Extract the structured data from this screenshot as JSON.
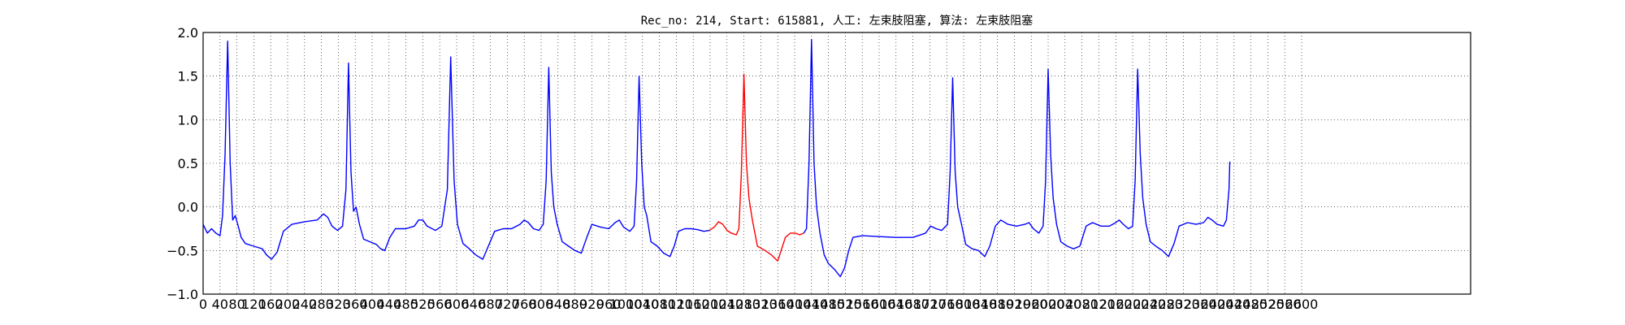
{
  "chart_data": {
    "type": "line",
    "title": "Rec_no: 214, Start: 615881, 人工: 左束肢阻塞, 算法: 左束肢阻塞",
    "xlabel": "",
    "ylabel": "",
    "xlim": [
      0,
      3000
    ],
    "ylim": [
      -1.0,
      2.0
    ],
    "grid": true,
    "x_ticks": [
      0,
      40,
      80,
      120,
      160,
      200,
      240,
      280,
      320,
      360,
      400,
      440,
      480,
      520,
      560,
      600,
      640,
      680,
      720,
      760,
      800,
      840,
      880,
      920,
      960,
      1000,
      1040,
      1080,
      1120,
      1160,
      1200,
      1240,
      1280,
      1320,
      1360,
      1400,
      1440,
      1480,
      1520,
      1560,
      1600,
      1640,
      1680,
      1720,
      1760,
      1800,
      1840,
      1880,
      1920,
      1960,
      2000,
      2040,
      2080,
      2120,
      2160,
      2200,
      2240,
      2280,
      2320,
      2360,
      2400,
      2440,
      2480,
      2520,
      2560,
      2600
    ],
    "x_tick_labels": [
      "0",
      "40",
      "80",
      "120",
      "160",
      "200",
      "240",
      "280",
      "320",
      "360",
      "400",
      "440",
      "480",
      "520",
      "560",
      "600",
      "640",
      "680",
      "720",
      "760",
      "800",
      "840",
      "880",
      "920",
      "960",
      "1000",
      "1040",
      "1080",
      "1120",
      "1160",
      "1200",
      "1240",
      "1280",
      "1320",
      "1360",
      "1400",
      "1440",
      "1480",
      "1520",
      "1560",
      "1600",
      "1640",
      "1680",
      "1720",
      "1760",
      "1800",
      "1840",
      "1880",
      "1920",
      "1960",
      "2000",
      "2040",
      "2080",
      "2120",
      "2160",
      "2200",
      "2240",
      "2280",
      "2320",
      "2360",
      "2400",
      "2440",
      "2480",
      "2520",
      "2560",
      "2600"
    ],
    "y_ticks": [
      -1.0,
      -0.5,
      0.0,
      0.5,
      1.0,
      1.5,
      2.0
    ],
    "y_tick_labels": [
      "−1.0",
      "−0.5",
      "0.0",
      "0.5",
      "1.0",
      "1.5",
      "2.0"
    ],
    "series": [
      {
        "color": "#0000ff",
        "points": [
          [
            0,
            -0.2
          ],
          [
            10,
            -0.3
          ],
          [
            20,
            -0.25
          ],
          [
            30,
            -0.3
          ],
          [
            40,
            -0.33
          ],
          [
            46,
            -0.1
          ],
          [
            52,
            0.6
          ],
          [
            58,
            1.9
          ],
          [
            64,
            0.5
          ],
          [
            70,
            -0.15
          ],
          [
            76,
            -0.1
          ],
          [
            82,
            -0.2
          ],
          [
            90,
            -0.35
          ],
          [
            100,
            -0.42
          ],
          [
            120,
            -0.45
          ],
          [
            140,
            -0.48
          ],
          [
            150,
            -0.55
          ],
          [
            162,
            -0.6
          ],
          [
            175,
            -0.52
          ],
          [
            190,
            -0.28
          ],
          [
            210,
            -0.2
          ],
          [
            240,
            -0.17
          ],
          [
            270,
            -0.15
          ],
          [
            285,
            -0.08
          ],
          [
            295,
            -0.12
          ],
          [
            305,
            -0.22
          ],
          [
            318,
            -0.27
          ],
          [
            330,
            -0.22
          ],
          [
            338,
            0.2
          ],
          [
            344,
            1.65
          ],
          [
            350,
            0.4
          ],
          [
            356,
            -0.05
          ],
          [
            362,
            0.0
          ],
          [
            370,
            -0.2
          ],
          [
            380,
            -0.37
          ],
          [
            395,
            -0.4
          ],
          [
            410,
            -0.43
          ],
          [
            420,
            -0.48
          ],
          [
            430,
            -0.5
          ],
          [
            442,
            -0.35
          ],
          [
            455,
            -0.25
          ],
          [
            480,
            -0.25
          ],
          [
            500,
            -0.22
          ],
          [
            510,
            -0.15
          ],
          [
            520,
            -0.15
          ],
          [
            530,
            -0.22
          ],
          [
            550,
            -0.27
          ],
          [
            565,
            -0.22
          ],
          [
            578,
            0.2
          ],
          [
            586,
            1.72
          ],
          [
            594,
            0.3
          ],
          [
            602,
            -0.2
          ],
          [
            615,
            -0.42
          ],
          [
            630,
            -0.48
          ],
          [
            645,
            -0.55
          ],
          [
            662,
            -0.6
          ],
          [
            675,
            -0.45
          ],
          [
            690,
            -0.28
          ],
          [
            710,
            -0.25
          ],
          [
            730,
            -0.25
          ],
          [
            750,
            -0.2
          ],
          [
            760,
            -0.15
          ],
          [
            770,
            -0.18
          ],
          [
            782,
            -0.25
          ],
          [
            795,
            -0.27
          ],
          [
            805,
            -0.2
          ],
          [
            812,
            0.3
          ],
          [
            818,
            1.6
          ],
          [
            824,
            0.4
          ],
          [
            830,
            0.0
          ],
          [
            838,
            -0.2
          ],
          [
            850,
            -0.4
          ],
          [
            865,
            -0.45
          ],
          [
            880,
            -0.5
          ],
          [
            895,
            -0.53
          ],
          [
            908,
            -0.35
          ],
          [
            920,
            -0.2
          ],
          [
            940,
            -0.23
          ],
          [
            960,
            -0.25
          ],
          [
            975,
            -0.18
          ],
          [
            985,
            -0.15
          ],
          [
            995,
            -0.23
          ],
          [
            1010,
            -0.28
          ],
          [
            1020,
            -0.22
          ],
          [
            1026,
            0.3
          ],
          [
            1032,
            1.5
          ],
          [
            1038,
            0.5
          ],
          [
            1044,
            0.0
          ],
          [
            1050,
            -0.1
          ],
          [
            1060,
            -0.4
          ],
          [
            1075,
            -0.45
          ],
          [
            1090,
            -0.53
          ],
          [
            1105,
            -0.57
          ],
          [
            1115,
            -0.45
          ],
          [
            1125,
            -0.28
          ],
          [
            1140,
            -0.25
          ],
          [
            1155,
            -0.25
          ],
          [
            1170,
            -0.26
          ],
          [
            1185,
            -0.28
          ],
          [
            1198,
            -0.27
          ]
        ]
      },
      {
        "color": "#ff0000",
        "points": [
          [
            1198,
            -0.27
          ],
          [
            1210,
            -0.23
          ],
          [
            1220,
            -0.17
          ],
          [
            1230,
            -0.2
          ],
          [
            1240,
            -0.27
          ],
          [
            1250,
            -0.3
          ],
          [
            1262,
            -0.32
          ],
          [
            1268,
            -0.25
          ],
          [
            1274,
            0.4
          ],
          [
            1280,
            1.52
          ],
          [
            1286,
            0.5
          ],
          [
            1292,
            0.1
          ],
          [
            1300,
            -0.15
          ],
          [
            1312,
            -0.45
          ],
          [
            1330,
            -0.5
          ],
          [
            1345,
            -0.55
          ],
          [
            1360,
            -0.62
          ],
          [
            1368,
            -0.5
          ],
          [
            1378,
            -0.35
          ],
          [
            1390,
            -0.3
          ],
          [
            1402,
            -0.3
          ],
          [
            1412,
            -0.32
          ],
          [
            1422,
            -0.3
          ]
        ]
      },
      {
        "color": "#0000ff",
        "points": [
          [
            1422,
            -0.3
          ],
          [
            1428,
            -0.25
          ],
          [
            1434,
            0.5
          ],
          [
            1440,
            1.92
          ],
          [
            1446,
            0.5
          ],
          [
            1452,
            0.0
          ],
          [
            1460,
            -0.3
          ],
          [
            1470,
            -0.55
          ],
          [
            1480,
            -0.65
          ],
          [
            1495,
            -0.72
          ],
          [
            1508,
            -0.8
          ],
          [
            1518,
            -0.7
          ],
          [
            1528,
            -0.5
          ],
          [
            1538,
            -0.35
          ],
          [
            1560,
            -0.33
          ],
          [
            1600,
            -0.34
          ],
          [
            1640,
            -0.35
          ],
          [
            1680,
            -0.35
          ],
          [
            1710,
            -0.3
          ],
          [
            1722,
            -0.22
          ],
          [
            1735,
            -0.25
          ],
          [
            1748,
            -0.27
          ],
          [
            1762,
            -0.2
          ],
          [
            1768,
            0.4
          ],
          [
            1774,
            1.48
          ],
          [
            1780,
            0.4
          ],
          [
            1786,
            0.0
          ],
          [
            1795,
            -0.2
          ],
          [
            1805,
            -0.43
          ],
          [
            1820,
            -0.48
          ],
          [
            1835,
            -0.5
          ],
          [
            1850,
            -0.57
          ],
          [
            1862,
            -0.45
          ],
          [
            1875,
            -0.22
          ],
          [
            1888,
            -0.15
          ],
          [
            1905,
            -0.2
          ],
          [
            1925,
            -0.22
          ],
          [
            1945,
            -0.2
          ],
          [
            1955,
            -0.18
          ],
          [
            1965,
            -0.25
          ],
          [
            1978,
            -0.3
          ],
          [
            1988,
            -0.22
          ],
          [
            1994,
            0.3
          ],
          [
            2000,
            1.58
          ],
          [
            2006,
            0.6
          ],
          [
            2012,
            0.1
          ],
          [
            2020,
            -0.2
          ],
          [
            2030,
            -0.4
          ],
          [
            2045,
            -0.45
          ],
          [
            2060,
            -0.48
          ],
          [
            2075,
            -0.45
          ],
          [
            2090,
            -0.22
          ],
          [
            2105,
            -0.18
          ],
          [
            2125,
            -0.22
          ],
          [
            2145,
            -0.22
          ],
          [
            2160,
            -0.18
          ],
          [
            2168,
            -0.15
          ],
          [
            2178,
            -0.2
          ],
          [
            2190,
            -0.25
          ],
          [
            2200,
            -0.22
          ],
          [
            2206,
            0.3
          ],
          [
            2212,
            1.58
          ],
          [
            2218,
            0.6
          ],
          [
            2224,
            0.1
          ],
          [
            2232,
            -0.2
          ],
          [
            2242,
            -0.4
          ],
          [
            2255,
            -0.45
          ],
          [
            2270,
            -0.5
          ],
          [
            2285,
            -0.57
          ],
          [
            2298,
            -0.42
          ],
          [
            2310,
            -0.22
          ],
          [
            2330,
            -0.18
          ],
          [
            2350,
            -0.2
          ],
          [
            2368,
            -0.18
          ],
          [
            2378,
            -0.12
          ],
          [
            2388,
            -0.15
          ],
          [
            2400,
            -0.2
          ],
          [
            2415,
            -0.22
          ],
          [
            2422,
            -0.15
          ],
          [
            2428,
            0.2
          ],
          [
            2430,
            0.52
          ]
        ]
      }
    ]
  }
}
